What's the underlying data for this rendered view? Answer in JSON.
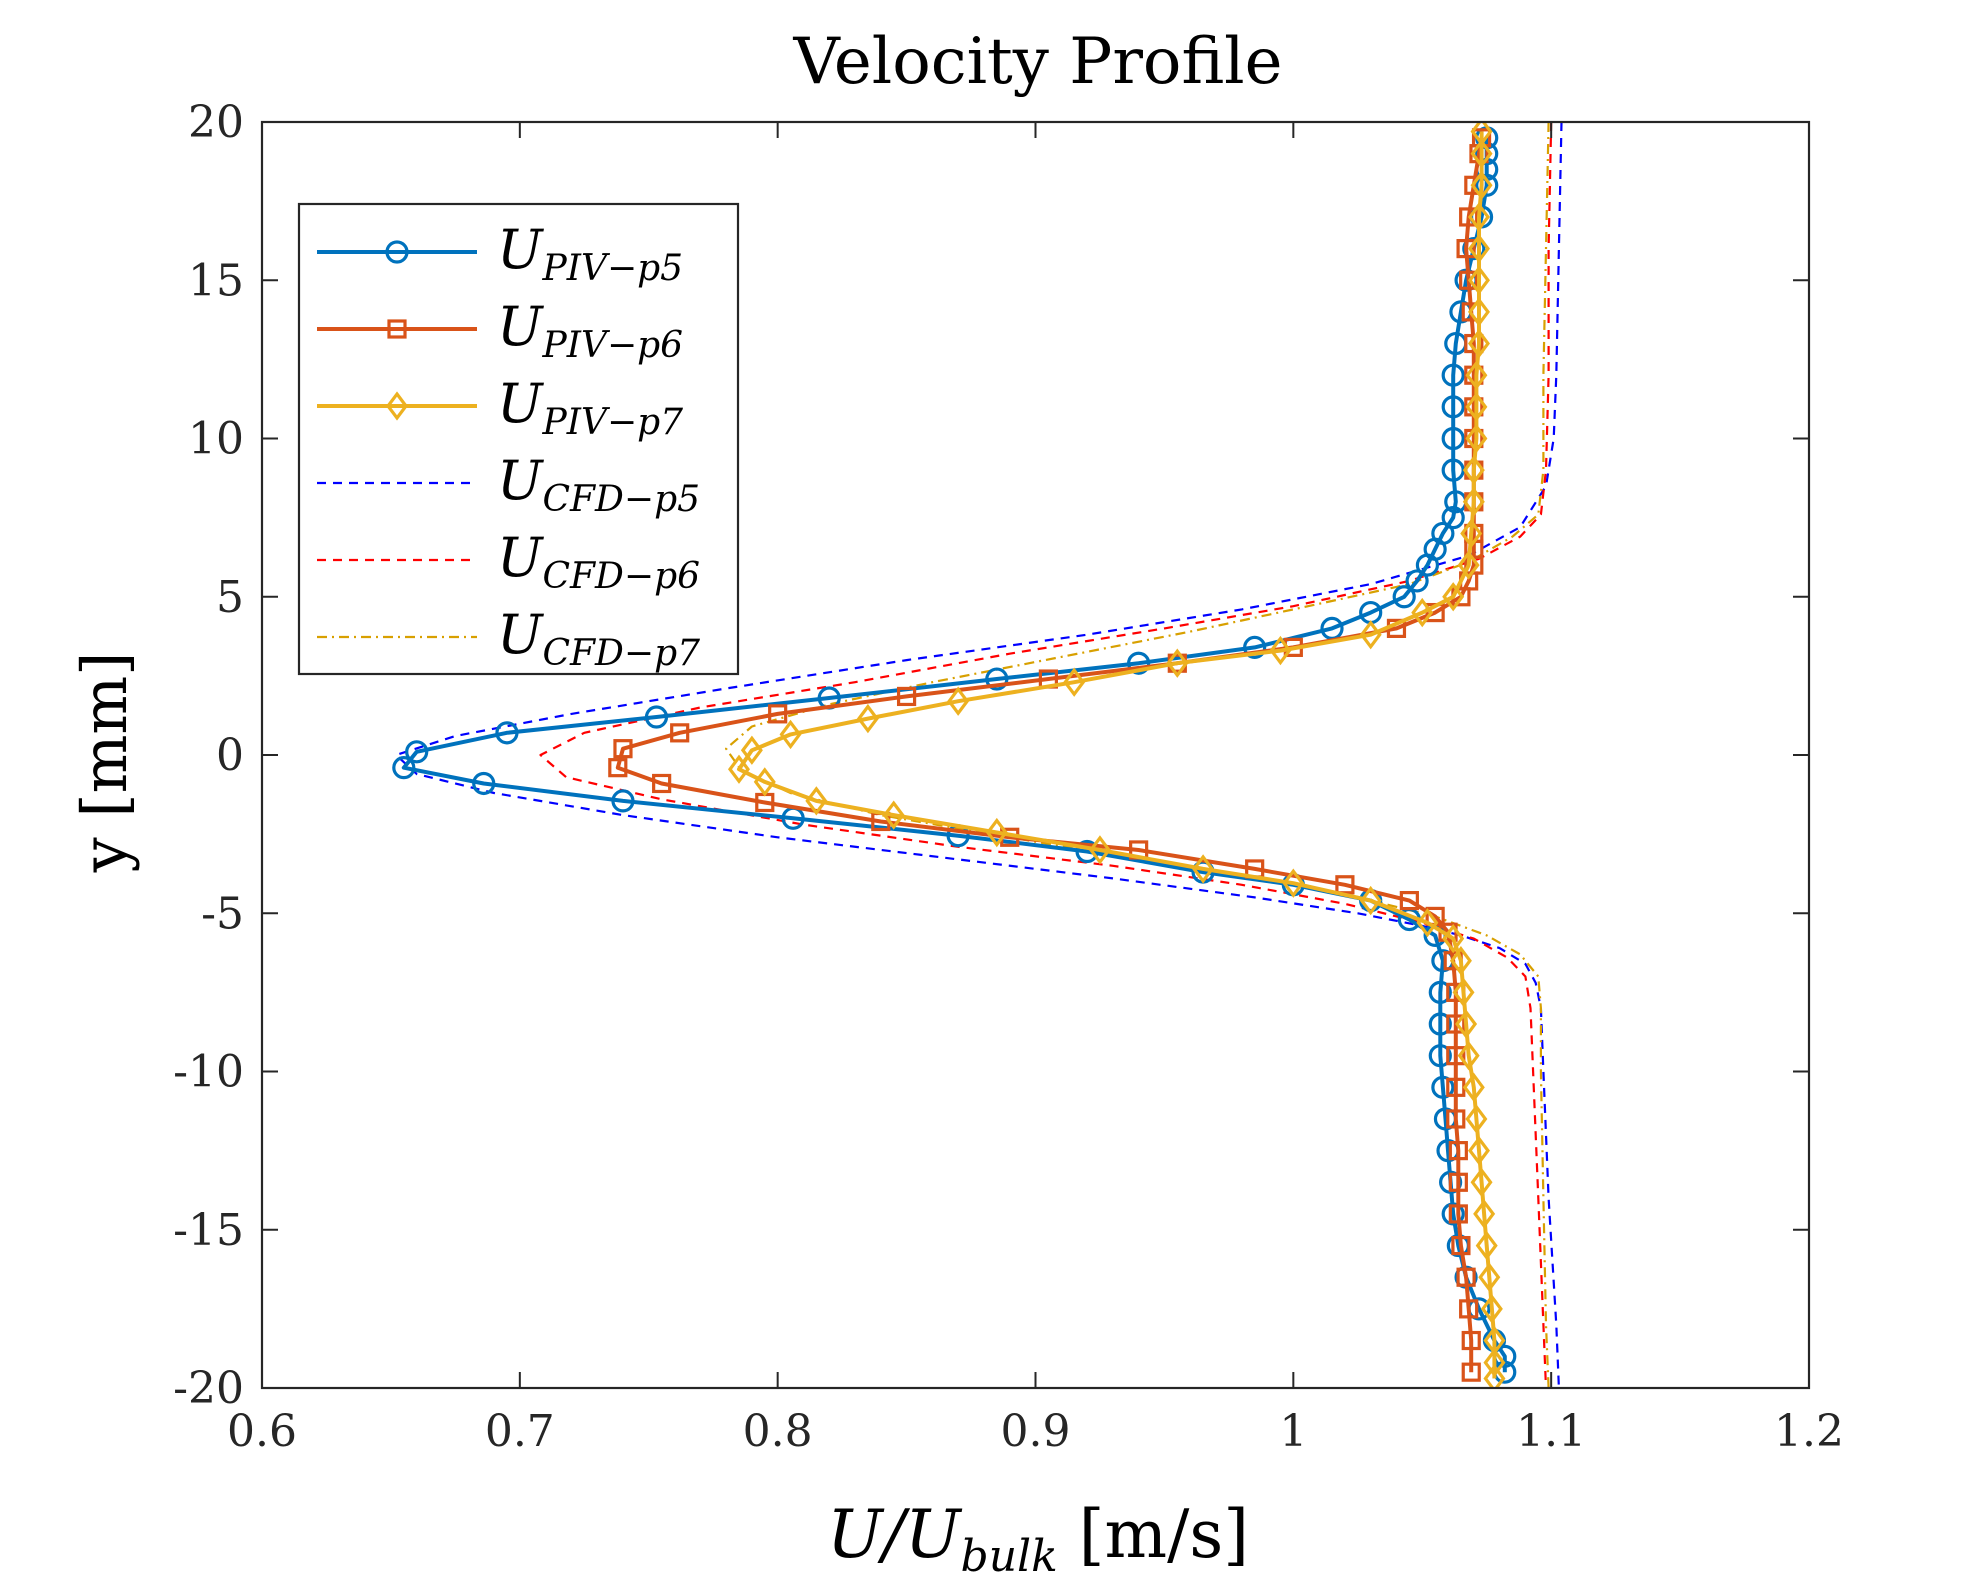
{
  "chart_data": {
    "type": "line",
    "title": "Velocity Profile",
    "xlabel": {
      "main": "U/U",
      "sub": "bulk",
      "units": " [m/s]"
    },
    "ylabel": "y [mm]",
    "xlim": [
      0.6,
      1.2
    ],
    "ylim": [
      -20,
      20
    ],
    "xticks": [
      0.6,
      0.7,
      0.8,
      0.9,
      1.0,
      1.1,
      1.2
    ],
    "xtick_labels": [
      "0.6",
      "0.7",
      "0.8",
      "0.9",
      "1",
      "1.1",
      "1.2"
    ],
    "yticks": [
      -20,
      -15,
      -10,
      -5,
      0,
      5,
      10,
      15,
      20
    ],
    "ytick_labels": [
      "-20",
      "-15",
      "-10",
      "-5",
      "0",
      "5",
      "10",
      "15",
      "20"
    ],
    "legend_position": "top-left",
    "series": [
      {
        "name": "PIV-p5",
        "legend_main": "U",
        "legend_sub": "PIV−p5",
        "color": "#0072BD",
        "style": "solid",
        "marker": "circle",
        "points": [
          [
            1.075,
            19.5
          ],
          [
            1.075,
            19.0
          ],
          [
            1.075,
            18.5
          ],
          [
            1.075,
            18.0
          ],
          [
            1.073,
            17.0
          ],
          [
            1.07,
            16.0
          ],
          [
            1.067,
            15.0
          ],
          [
            1.065,
            14.0
          ],
          [
            1.063,
            13.0
          ],
          [
            1.062,
            12.0
          ],
          [
            1.062,
            11.0
          ],
          [
            1.062,
            10.0
          ],
          [
            1.062,
            9.0
          ],
          [
            1.063,
            8.0
          ],
          [
            1.062,
            7.5
          ],
          [
            1.058,
            7.0
          ],
          [
            1.055,
            6.5
          ],
          [
            1.052,
            6.0
          ],
          [
            1.048,
            5.5
          ],
          [
            1.043,
            5.0
          ],
          [
            1.03,
            4.5
          ],
          [
            1.015,
            4.0
          ],
          [
            0.985,
            3.4
          ],
          [
            0.94,
            2.9
          ],
          [
            0.885,
            2.4
          ],
          [
            0.82,
            1.8
          ],
          [
            0.753,
            1.2
          ],
          [
            0.695,
            0.7
          ],
          [
            0.66,
            0.1
          ],
          [
            0.655,
            -0.4
          ],
          [
            0.686,
            -0.9
          ],
          [
            0.74,
            -1.45
          ],
          [
            0.806,
            -2.0
          ],
          [
            0.87,
            -2.55
          ],
          [
            0.92,
            -3.05
          ],
          [
            0.965,
            -3.7
          ],
          [
            1.0,
            -4.1
          ],
          [
            1.03,
            -4.6
          ],
          [
            1.045,
            -5.2
          ],
          [
            1.055,
            -5.7
          ],
          [
            1.058,
            -6.5
          ],
          [
            1.057,
            -7.5
          ],
          [
            1.057,
            -8.5
          ],
          [
            1.057,
            -9.5
          ],
          [
            1.058,
            -10.5
          ],
          [
            1.059,
            -11.5
          ],
          [
            1.06,
            -12.5
          ],
          [
            1.061,
            -13.5
          ],
          [
            1.062,
            -14.5
          ],
          [
            1.064,
            -15.5
          ],
          [
            1.067,
            -16.5
          ],
          [
            1.072,
            -17.5
          ],
          [
            1.078,
            -18.5
          ],
          [
            1.082,
            -19.0
          ],
          [
            1.082,
            -19.5
          ]
        ]
      },
      {
        "name": "PIV-p6",
        "legend_main": "U",
        "legend_sub": "PIV−p6",
        "color": "#D95319",
        "style": "solid",
        "marker": "square",
        "points": [
          [
            1.073,
            19.5
          ],
          [
            1.072,
            19.0
          ],
          [
            1.07,
            18.0
          ],
          [
            1.068,
            17.0
          ],
          [
            1.067,
            16.0
          ],
          [
            1.068,
            15.0
          ],
          [
            1.069,
            14.0
          ],
          [
            1.07,
            13.0
          ],
          [
            1.07,
            12.0
          ],
          [
            1.07,
            11.0
          ],
          [
            1.07,
            10.0
          ],
          [
            1.07,
            9.0
          ],
          [
            1.07,
            8.0
          ],
          [
            1.07,
            7.0
          ],
          [
            1.07,
            6.5
          ],
          [
            1.07,
            6.0
          ],
          [
            1.068,
            5.5
          ],
          [
            1.065,
            5.0
          ],
          [
            1.055,
            4.5
          ],
          [
            1.04,
            4.0
          ],
          [
            1.0,
            3.4
          ],
          [
            0.955,
            2.9
          ],
          [
            0.905,
            2.4
          ],
          [
            0.85,
            1.85
          ],
          [
            0.8,
            1.3
          ],
          [
            0.762,
            0.7
          ],
          [
            0.74,
            0.2
          ],
          [
            0.738,
            -0.4
          ],
          [
            0.755,
            -0.9
          ],
          [
            0.795,
            -1.5
          ],
          [
            0.84,
            -2.1
          ],
          [
            0.89,
            -2.6
          ],
          [
            0.94,
            -3.0
          ],
          [
            0.985,
            -3.6
          ],
          [
            1.02,
            -4.1
          ],
          [
            1.045,
            -4.6
          ],
          [
            1.055,
            -5.1
          ],
          [
            1.06,
            -5.6
          ],
          [
            1.062,
            -6.5
          ],
          [
            1.063,
            -7.5
          ],
          [
            1.063,
            -8.5
          ],
          [
            1.063,
            -9.5
          ],
          [
            1.063,
            -10.5
          ],
          [
            1.063,
            -11.5
          ],
          [
            1.064,
            -12.5
          ],
          [
            1.064,
            -13.5
          ],
          [
            1.064,
            -14.5
          ],
          [
            1.065,
            -15.5
          ],
          [
            1.067,
            -16.5
          ],
          [
            1.068,
            -17.5
          ],
          [
            1.069,
            -18.5
          ],
          [
            1.069,
            -19.5
          ]
        ]
      },
      {
        "name": "PIV-p7",
        "legend_main": "U",
        "legend_sub": "PIV−p7",
        "color": "#EDB120",
        "style": "solid",
        "marker": "diamond",
        "points": [
          [
            1.073,
            19.7
          ],
          [
            1.073,
            19.0
          ],
          [
            1.073,
            18.0
          ],
          [
            1.072,
            17.0
          ],
          [
            1.072,
            16.0
          ],
          [
            1.072,
            15.0
          ],
          [
            1.072,
            14.0
          ],
          [
            1.072,
            13.0
          ],
          [
            1.071,
            12.0
          ],
          [
            1.071,
            11.0
          ],
          [
            1.071,
            10.0
          ],
          [
            1.07,
            9.0
          ],
          [
            1.07,
            8.0
          ],
          [
            1.069,
            7.0
          ],
          [
            1.068,
            6.0
          ],
          [
            1.062,
            5.0
          ],
          [
            1.05,
            4.5
          ],
          [
            1.03,
            3.8
          ],
          [
            0.995,
            3.3
          ],
          [
            0.955,
            2.9
          ],
          [
            0.915,
            2.3
          ],
          [
            0.87,
            1.7
          ],
          [
            0.835,
            1.15
          ],
          [
            0.805,
            0.65
          ],
          [
            0.79,
            0.15
          ],
          [
            0.785,
            -0.45
          ],
          [
            0.795,
            -0.85
          ],
          [
            0.815,
            -1.45
          ],
          [
            0.845,
            -1.9
          ],
          [
            0.885,
            -2.45
          ],
          [
            0.925,
            -3.0
          ],
          [
            0.965,
            -3.6
          ],
          [
            1.0,
            -4.05
          ],
          [
            1.03,
            -4.6
          ],
          [
            1.052,
            -5.3
          ],
          [
            1.062,
            -5.8
          ],
          [
            1.065,
            -6.5
          ],
          [
            1.066,
            -7.5
          ],
          [
            1.067,
            -8.5
          ],
          [
            1.068,
            -9.5
          ],
          [
            1.07,
            -10.5
          ],
          [
            1.071,
            -11.5
          ],
          [
            1.072,
            -12.5
          ],
          [
            1.073,
            -13.5
          ],
          [
            1.074,
            -14.5
          ],
          [
            1.075,
            -15.5
          ],
          [
            1.076,
            -16.5
          ],
          [
            1.077,
            -17.5
          ],
          [
            1.078,
            -18.5
          ],
          [
            1.078,
            -19.2
          ],
          [
            1.078,
            -19.7
          ]
        ]
      },
      {
        "name": "CFD-p5",
        "legend_main": "U",
        "legend_sub": "CFD−p5",
        "color": "#0000FF",
        "style": "dashed",
        "marker": "none",
        "points": [
          [
            1.104,
            20
          ],
          [
            1.103,
            16
          ],
          [
            1.102,
            12
          ],
          [
            1.101,
            10
          ],
          [
            1.098,
            8.5
          ],
          [
            1.088,
            7.2
          ],
          [
            1.068,
            6.3
          ],
          [
            1.03,
            5.4
          ],
          [
            0.98,
            4.6
          ],
          [
            0.92,
            3.8
          ],
          [
            0.85,
            3.0
          ],
          [
            0.78,
            2.1
          ],
          [
            0.72,
            1.3
          ],
          [
            0.675,
            0.6
          ],
          [
            0.652,
            0.0
          ],
          [
            0.66,
            -0.6
          ],
          [
            0.69,
            -1.2
          ],
          [
            0.74,
            -1.9
          ],
          [
            0.8,
            -2.6
          ],
          [
            0.87,
            -3.3
          ],
          [
            0.93,
            -3.9
          ],
          [
            0.985,
            -4.5
          ],
          [
            1.025,
            -5.0
          ],
          [
            1.05,
            -5.4
          ],
          [
            1.065,
            -5.7
          ],
          [
            1.08,
            -6.1
          ],
          [
            1.09,
            -6.6
          ],
          [
            1.094,
            -7.2
          ],
          [
            1.096,
            -8.0
          ],
          [
            1.097,
            -10
          ],
          [
            1.099,
            -14
          ],
          [
            1.102,
            -18
          ],
          [
            1.103,
            -20
          ]
        ]
      },
      {
        "name": "CFD-p6",
        "legend_main": "U",
        "legend_sub": "CFD−p6",
        "color": "#FF0000",
        "style": "dashed",
        "marker": "none",
        "points": [
          [
            1.1,
            20
          ],
          [
            1.099,
            16
          ],
          [
            1.099,
            12
          ],
          [
            1.098,
            9
          ],
          [
            1.096,
            7.6
          ],
          [
            1.088,
            6.9
          ],
          [
            1.072,
            6.2
          ],
          [
            1.045,
            5.5
          ],
          [
            1.0,
            4.7
          ],
          [
            0.95,
            4.0
          ],
          [
            0.89,
            3.2
          ],
          [
            0.83,
            2.3
          ],
          [
            0.77,
            1.5
          ],
          [
            0.725,
            0.7
          ],
          [
            0.708,
            0.0
          ],
          [
            0.718,
            -0.7
          ],
          [
            0.755,
            -1.4
          ],
          [
            0.81,
            -2.2
          ],
          [
            0.87,
            -2.9
          ],
          [
            0.93,
            -3.5
          ],
          [
            0.98,
            -4.1
          ],
          [
            1.02,
            -4.7
          ],
          [
            1.05,
            -5.3
          ],
          [
            1.07,
            -5.8
          ],
          [
            1.083,
            -6.4
          ],
          [
            1.09,
            -7.0
          ],
          [
            1.092,
            -8.0
          ],
          [
            1.093,
            -10
          ],
          [
            1.095,
            -14
          ],
          [
            1.097,
            -18
          ],
          [
            1.098,
            -20
          ]
        ]
      },
      {
        "name": "CFD-p7",
        "legend_main": "U",
        "legend_sub": "CFD−p7",
        "color": "#D8A000",
        "style": "dashdot",
        "marker": "none",
        "points": [
          [
            1.099,
            20
          ],
          [
            1.098,
            16
          ],
          [
            1.097,
            12
          ],
          [
            1.097,
            9
          ],
          [
            1.095,
            7.6
          ],
          [
            1.085,
            6.9
          ],
          [
            1.068,
            6.1
          ],
          [
            1.045,
            5.4
          ],
          [
            1.0,
            4.6
          ],
          [
            0.96,
            3.9
          ],
          [
            0.91,
            3.1
          ],
          [
            0.86,
            2.3
          ],
          [
            0.82,
            1.6
          ],
          [
            0.79,
            0.9
          ],
          [
            0.78,
            0.2
          ],
          [
            0.786,
            -0.5
          ],
          [
            0.805,
            -1.2
          ],
          [
            0.84,
            -1.9
          ],
          [
            0.89,
            -2.6
          ],
          [
            0.94,
            -3.3
          ],
          [
            0.985,
            -3.9
          ],
          [
            1.025,
            -4.5
          ],
          [
            1.055,
            -5.1
          ],
          [
            1.075,
            -5.7
          ],
          [
            1.088,
            -6.3
          ],
          [
            1.095,
            -7.0
          ],
          [
            1.096,
            -8.0
          ],
          [
            1.096,
            -10
          ],
          [
            1.097,
            -14
          ],
          [
            1.098,
            -18
          ],
          [
            1.099,
            -20
          ]
        ]
      }
    ]
  }
}
